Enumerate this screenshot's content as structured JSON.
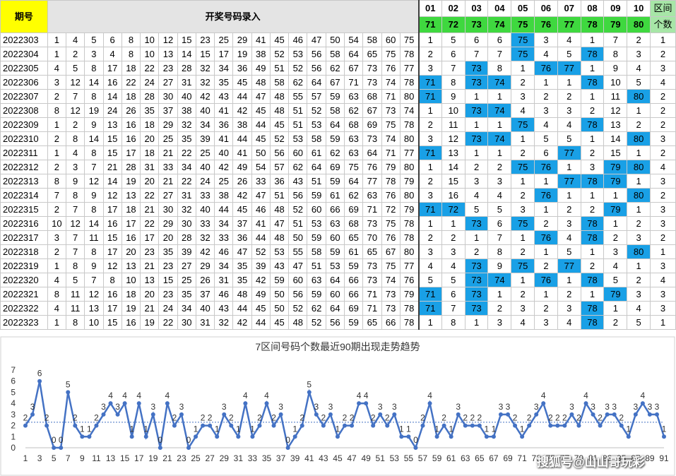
{
  "header": {
    "period_label": "期号",
    "title": "开奖号码录入",
    "zone_numbers": [
      "01",
      "02",
      "03",
      "04",
      "05",
      "06",
      "07",
      "08",
      "09",
      "10"
    ],
    "zone_values": [
      "71",
      "72",
      "73",
      "74",
      "75",
      "76",
      "77",
      "78",
      "79",
      "80"
    ],
    "zone_count_label_1": "区间",
    "zone_count_label_2": "个数"
  },
  "rows": [
    {
      "period": "2022303",
      "draws": [
        "1",
        "4",
        "5",
        "6",
        "8",
        "10",
        "12",
        "15",
        "23",
        "25",
        "29",
        "41",
        "45",
        "46",
        "47",
        "50",
        "54",
        "58",
        "60",
        "75"
      ],
      "zones": [
        "1",
        "5",
        "6",
        "6",
        "75",
        "3",
        "4",
        "1",
        "7",
        "2"
      ],
      "hl": [
        4
      ],
      "count": "1"
    },
    {
      "period": "2022304",
      "draws": [
        "1",
        "2",
        "3",
        "4",
        "8",
        "10",
        "13",
        "14",
        "15",
        "17",
        "19",
        "38",
        "52",
        "53",
        "56",
        "58",
        "64",
        "65",
        "75",
        "78"
      ],
      "zones": [
        "2",
        "6",
        "7",
        "7",
        "75",
        "4",
        "5",
        "78",
        "8",
        "3"
      ],
      "hl": [
        4,
        7
      ],
      "count": "2"
    },
    {
      "period": "2022305",
      "draws": [
        "4",
        "5",
        "8",
        "17",
        "18",
        "22",
        "23",
        "28",
        "32",
        "34",
        "36",
        "49",
        "51",
        "52",
        "56",
        "62",
        "67",
        "73",
        "76",
        "77"
      ],
      "zones": [
        "3",
        "7",
        "73",
        "8",
        "1",
        "76",
        "77",
        "1",
        "9",
        "4"
      ],
      "hl": [
        2,
        5,
        6
      ],
      "count": "3"
    },
    {
      "period": "2022306",
      "draws": [
        "3",
        "12",
        "14",
        "16",
        "22",
        "24",
        "27",
        "31",
        "32",
        "35",
        "45",
        "48",
        "58",
        "62",
        "64",
        "67",
        "71",
        "73",
        "74",
        "78"
      ],
      "zones": [
        "71",
        "8",
        "73",
        "74",
        "2",
        "1",
        "1",
        "78",
        "10",
        "5"
      ],
      "hl": [
        0,
        2,
        3,
        7
      ],
      "count": "4"
    },
    {
      "period": "2022307",
      "draws": [
        "2",
        "7",
        "8",
        "14",
        "18",
        "28",
        "30",
        "40",
        "42",
        "43",
        "44",
        "47",
        "48",
        "55",
        "57",
        "59",
        "63",
        "68",
        "71",
        "80"
      ],
      "zones": [
        "71",
        "9",
        "1",
        "1",
        "3",
        "2",
        "2",
        "1",
        "11",
        "80"
      ],
      "hl": [
        0,
        9
      ],
      "count": "2"
    },
    {
      "period": "2022308",
      "draws": [
        "8",
        "12",
        "19",
        "24",
        "26",
        "35",
        "37",
        "38",
        "40",
        "41",
        "42",
        "45",
        "48",
        "51",
        "52",
        "58",
        "62",
        "67",
        "73",
        "74"
      ],
      "zones": [
        "1",
        "10",
        "73",
        "74",
        "4",
        "3",
        "3",
        "2",
        "12",
        "1"
      ],
      "hl": [
        2,
        3
      ],
      "count": "2"
    },
    {
      "period": "2022309",
      "draws": [
        "1",
        "2",
        "9",
        "13",
        "16",
        "18",
        "29",
        "32",
        "34",
        "36",
        "38",
        "44",
        "45",
        "51",
        "53",
        "64",
        "68",
        "69",
        "75",
        "78"
      ],
      "zones": [
        "2",
        "11",
        "1",
        "1",
        "75",
        "4",
        "4",
        "78",
        "13",
        "2"
      ],
      "hl": [
        4,
        7
      ],
      "count": "2"
    },
    {
      "period": "2022310",
      "draws": [
        "2",
        "8",
        "14",
        "15",
        "16",
        "20",
        "25",
        "35",
        "39",
        "41",
        "44",
        "45",
        "52",
        "53",
        "58",
        "59",
        "63",
        "73",
        "74",
        "80"
      ],
      "zones": [
        "3",
        "12",
        "73",
        "74",
        "1",
        "5",
        "5",
        "1",
        "14",
        "80"
      ],
      "hl": [
        2,
        3,
        9
      ],
      "count": "3"
    },
    {
      "period": "2022311",
      "draws": [
        "1",
        "4",
        "8",
        "15",
        "17",
        "18",
        "21",
        "22",
        "25",
        "40",
        "41",
        "50",
        "56",
        "60",
        "61",
        "62",
        "63",
        "64",
        "71",
        "77"
      ],
      "zones": [
        "71",
        "13",
        "1",
        "1",
        "2",
        "6",
        "77",
        "2",
        "15",
        "1"
      ],
      "hl": [
        0,
        6
      ],
      "count": "2"
    },
    {
      "period": "2022312",
      "draws": [
        "2",
        "3",
        "7",
        "21",
        "28",
        "31",
        "33",
        "34",
        "40",
        "42",
        "49",
        "54",
        "57",
        "62",
        "64",
        "69",
        "75",
        "76",
        "79",
        "80"
      ],
      "zones": [
        "1",
        "14",
        "2",
        "2",
        "75",
        "76",
        "1",
        "3",
        "79",
        "80"
      ],
      "hl": [
        4,
        5,
        8,
        9
      ],
      "count": "4"
    },
    {
      "period": "2022313",
      "draws": [
        "8",
        "9",
        "12",
        "14",
        "19",
        "20",
        "21",
        "22",
        "24",
        "25",
        "26",
        "33",
        "36",
        "43",
        "51",
        "59",
        "64",
        "77",
        "78",
        "79"
      ],
      "zones": [
        "2",
        "15",
        "3",
        "3",
        "1",
        "1",
        "77",
        "78",
        "79",
        "1"
      ],
      "hl": [
        6,
        7,
        8
      ],
      "count": "3"
    },
    {
      "period": "2022314",
      "draws": [
        "7",
        "8",
        "9",
        "12",
        "13",
        "22",
        "27",
        "31",
        "33",
        "38",
        "42",
        "47",
        "51",
        "56",
        "59",
        "61",
        "62",
        "63",
        "76",
        "80"
      ],
      "zones": [
        "3",
        "16",
        "4",
        "4",
        "2",
        "76",
        "1",
        "1",
        "1",
        "80"
      ],
      "hl": [
        5,
        9
      ],
      "count": "2"
    },
    {
      "period": "2022315",
      "draws": [
        "2",
        "7",
        "8",
        "17",
        "18",
        "21",
        "30",
        "32",
        "40",
        "44",
        "45",
        "46",
        "48",
        "52",
        "60",
        "66",
        "69",
        "71",
        "72",
        "79"
      ],
      "zones": [
        "71",
        "72",
        "5",
        "5",
        "3",
        "1",
        "2",
        "2",
        "79",
        "1"
      ],
      "hl": [
        0,
        1,
        8
      ],
      "count": "3"
    },
    {
      "period": "2022316",
      "draws": [
        "10",
        "12",
        "14",
        "16",
        "17",
        "22",
        "29",
        "30",
        "33",
        "34",
        "37",
        "41",
        "47",
        "51",
        "53",
        "63",
        "68",
        "73",
        "75",
        "78"
      ],
      "zones": [
        "1",
        "1",
        "73",
        "6",
        "75",
        "2",
        "3",
        "78",
        "1",
        "2"
      ],
      "hl": [
        2,
        4,
        7
      ],
      "count": "3"
    },
    {
      "period": "2022317",
      "draws": [
        "3",
        "7",
        "11",
        "15",
        "16",
        "17",
        "20",
        "28",
        "32",
        "33",
        "36",
        "44",
        "48",
        "50",
        "59",
        "60",
        "65",
        "70",
        "76",
        "78"
      ],
      "zones": [
        "2",
        "2",
        "1",
        "7",
        "1",
        "76",
        "4",
        "78",
        "2",
        "3"
      ],
      "hl": [
        5,
        7
      ],
      "count": "2"
    },
    {
      "period": "2022318",
      "draws": [
        "2",
        "7",
        "8",
        "17",
        "20",
        "23",
        "35",
        "39",
        "42",
        "46",
        "47",
        "52",
        "53",
        "55",
        "58",
        "59",
        "61",
        "65",
        "67",
        "80"
      ],
      "zones": [
        "3",
        "3",
        "2",
        "8",
        "2",
        "1",
        "5",
        "1",
        "3",
        "80"
      ],
      "hl": [
        9
      ],
      "count": "1"
    },
    {
      "period": "2022319",
      "draws": [
        "1",
        "8",
        "9",
        "12",
        "13",
        "21",
        "23",
        "27",
        "29",
        "34",
        "35",
        "39",
        "43",
        "47",
        "51",
        "53",
        "59",
        "73",
        "75",
        "77"
      ],
      "zones": [
        "4",
        "4",
        "73",
        "9",
        "75",
        "2",
        "77",
        "2",
        "4",
        "1"
      ],
      "hl": [
        2,
        4,
        6
      ],
      "count": "3"
    },
    {
      "period": "2022320",
      "draws": [
        "4",
        "5",
        "7",
        "8",
        "10",
        "13",
        "15",
        "25",
        "26",
        "31",
        "35",
        "42",
        "59",
        "60",
        "63",
        "64",
        "66",
        "73",
        "74",
        "76"
      ],
      "zones": [
        "5",
        "5",
        "73",
        "74",
        "1",
        "76",
        "1",
        "78",
        "5",
        "2"
      ],
      "hl": [
        2,
        3,
        5,
        7
      ],
      "count": "4"
    },
    {
      "period": "2022321",
      "draws": [
        "8",
        "11",
        "12",
        "16",
        "18",
        "20",
        "23",
        "35",
        "37",
        "46",
        "48",
        "49",
        "50",
        "56",
        "59",
        "60",
        "66",
        "71",
        "73",
        "79"
      ],
      "zones": [
        "71",
        "6",
        "73",
        "1",
        "2",
        "1",
        "2",
        "1",
        "79",
        "3"
      ],
      "hl": [
        0,
        2,
        8
      ],
      "count": "3"
    },
    {
      "period": "2022322",
      "draws": [
        "4",
        "11",
        "13",
        "17",
        "19",
        "21",
        "24",
        "34",
        "40",
        "43",
        "44",
        "45",
        "50",
        "52",
        "62",
        "64",
        "69",
        "71",
        "73",
        "78"
      ],
      "zones": [
        "71",
        "7",
        "73",
        "2",
        "3",
        "2",
        "3",
        "78",
        "1",
        "4"
      ],
      "hl": [
        0,
        2,
        7
      ],
      "count": "3"
    },
    {
      "period": "2022323",
      "draws": [
        "1",
        "8",
        "10",
        "15",
        "16",
        "19",
        "22",
        "30",
        "31",
        "32",
        "42",
        "44",
        "45",
        "48",
        "52",
        "56",
        "59",
        "65",
        "66",
        "78"
      ],
      "zones": [
        "1",
        "8",
        "1",
        "3",
        "4",
        "3",
        "4",
        "78",
        "2",
        "5"
      ],
      "hl": [
        7
      ],
      "count": "1"
    }
  ],
  "colors": {
    "highlight": "#19a0e6",
    "period_bg": "#ffff00",
    "zone_value_bg": "#3fd83f",
    "zone_count_bg": "#a7e6a7",
    "title_red": "#d40000",
    "series_line": "#4472c4"
  },
  "chart_data": {
    "type": "line",
    "title": "7区间号码个数最近90期出现走势趋势",
    "x": [
      1,
      2,
      3,
      4,
      5,
      6,
      7,
      8,
      9,
      10,
      11,
      12,
      13,
      14,
      15,
      16,
      17,
      18,
      19,
      20,
      21,
      22,
      23,
      24,
      25,
      26,
      27,
      28,
      29,
      30,
      31,
      32,
      33,
      34,
      35,
      36,
      37,
      38,
      39,
      40,
      41,
      42,
      43,
      44,
      45,
      46,
      47,
      48,
      49,
      50,
      51,
      52,
      53,
      54,
      55,
      56,
      57,
      58,
      59,
      60,
      61,
      62,
      63,
      64,
      65,
      66,
      67,
      68,
      69,
      70,
      71,
      72,
      73,
      74,
      75,
      76,
      77,
      78,
      79,
      80,
      81,
      82,
      83,
      84,
      85,
      86,
      87,
      88,
      89,
      90,
      91
    ],
    "values": [
      2,
      3,
      6,
      2,
      0,
      0,
      5,
      2,
      1,
      1,
      2,
      3,
      4,
      3,
      4,
      1,
      4,
      1,
      3,
      0,
      4,
      2,
      3,
      0,
      1,
      2,
      2,
      1,
      3,
      2,
      1,
      4,
      1,
      2,
      4,
      2,
      3,
      0,
      1,
      2,
      5,
      3,
      2,
      3,
      1,
      2,
      2,
      4,
      4,
      2,
      3,
      2,
      3,
      1,
      1,
      0,
      2,
      4,
      1,
      2,
      1,
      3,
      2,
      2,
      2,
      1,
      1,
      3,
      3,
      2,
      1,
      2,
      3,
      4,
      2,
      2,
      2,
      3,
      2,
      4,
      3,
      2,
      3,
      3,
      2,
      1,
      3,
      4,
      3,
      3,
      1
    ],
    "avg": 2.3,
    "xticks": [
      1,
      3,
      5,
      7,
      9,
      11,
      13,
      15,
      17,
      19,
      21,
      23,
      25,
      27,
      29,
      31,
      33,
      35,
      37,
      39,
      41,
      43,
      45,
      47,
      49,
      51,
      53,
      55,
      57,
      59,
      61,
      63,
      65,
      67,
      69,
      71,
      73,
      75,
      77,
      79,
      81,
      83,
      85,
      87,
      89,
      91
    ],
    "ylim": [
      0,
      7
    ],
    "yticks": [
      0,
      1,
      2,
      3,
      4,
      5,
      6,
      7
    ],
    "grid": false,
    "data_labels": true
  },
  "watermark": "搜狐号@山山哥玩彩"
}
